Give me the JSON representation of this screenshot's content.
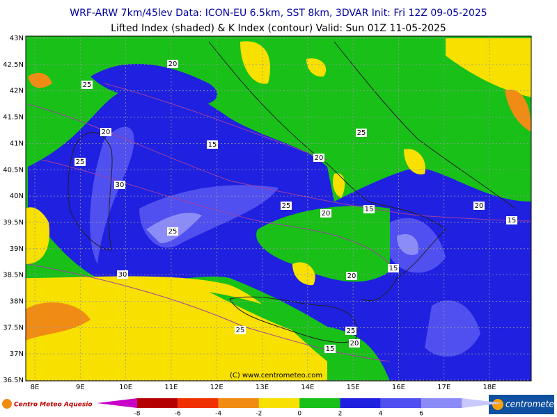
{
  "header": {
    "line1": "WRF-ARW 7km/45lev   Data: ICON-EU 6.5km, SST 8km, 3DVAR   Init: Fri 12Z 09-05-2025",
    "line2": "Lifted Index (shaded) & K Index (contour)   Valid: Sun 01Z 11-05-2025"
  },
  "map": {
    "lat_labels": [
      "43N",
      "42.5N",
      "42N",
      "41.5N",
      "41N",
      "40.5N",
      "40N",
      "39.5N",
      "39N",
      "38.5N",
      "38N",
      "37.5N",
      "37N",
      "36.5N"
    ],
    "lon_labels": [
      "8E",
      "9E",
      "10E",
      "11E",
      "12E",
      "13E",
      "14E",
      "15E",
      "16E",
      "17E",
      "18E"
    ],
    "contour_labels": [
      20,
      25,
      20,
      15,
      25,
      30,
      20,
      25,
      25,
      20,
      15,
      25,
      20,
      15,
      30,
      15,
      20,
      25,
      25,
      20,
      15
    ],
    "copyright": "(C) www.centrometeo.com"
  },
  "colorbar": {
    "ticks": [
      -8,
      -6,
      -4,
      -2,
      0,
      2,
      4,
      6
    ],
    "colors": [
      "#c800c8",
      "#b40000",
      "#f03000",
      "#f08c14",
      "#f8e000",
      "#18c018",
      "#2020e0",
      "#5050f0",
      "#8c8cf8",
      "#c8c8fc"
    ]
  },
  "footer": {
    "left_logo": "Centro Meteo Aquesio",
    "right_logo": "centrometeo"
  }
}
